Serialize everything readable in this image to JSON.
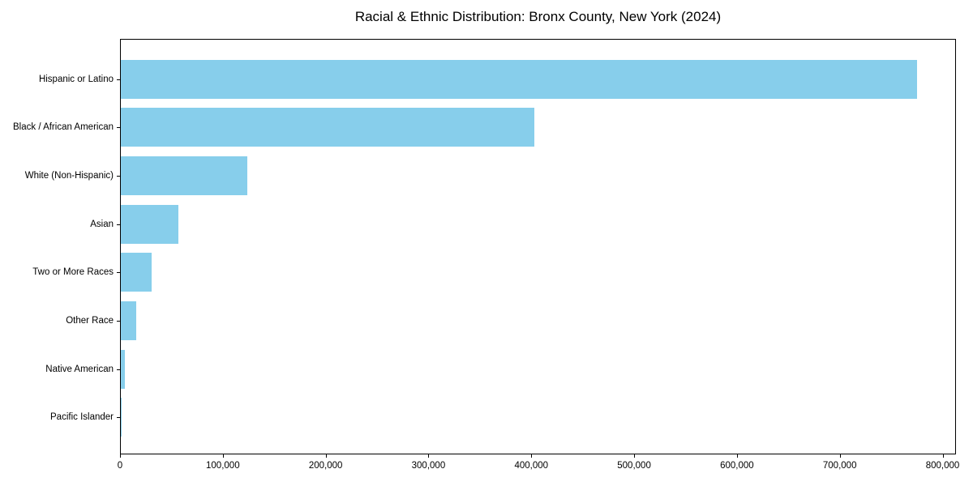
{
  "figure": {
    "background_color": "#ffffff",
    "text_color": "#000000",
    "frame_color": "#000000"
  },
  "chart_data": {
    "type": "bar",
    "orientation": "horizontal",
    "title": "Racial & Ethnic Distribution: Bronx County, New York (2024)",
    "categories": [
      "Hispanic or Latino",
      "Black / African American",
      "White (Non-Hispanic)",
      "Asian",
      "Two or More Races",
      "Other Race",
      "Native American",
      "Pacific Islander"
    ],
    "values": [
      774000,
      402000,
      123000,
      56000,
      30000,
      15000,
      3800,
      400
    ],
    "bar_color": "#87CEEB",
    "xlabel": "",
    "ylabel": "",
    "xlim": [
      0,
      813000
    ],
    "x_ticks": [
      0,
      100000,
      200000,
      300000,
      400000,
      500000,
      600000,
      700000,
      800000
    ],
    "x_tick_labels": [
      "0",
      "100,000",
      "200,000",
      "300,000",
      "400,000",
      "500,000",
      "600,000",
      "700,000",
      "800,000"
    ],
    "grid": false,
    "legend": "none"
  }
}
